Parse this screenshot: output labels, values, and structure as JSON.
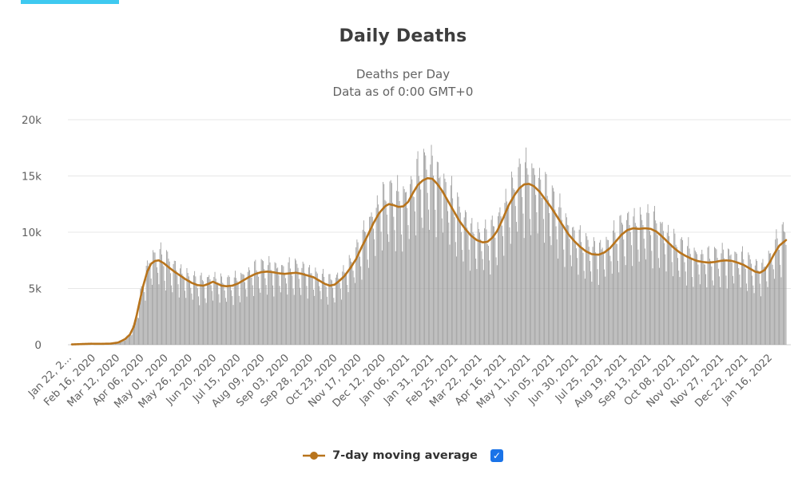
{
  "page": {
    "tab_indicator_color": "#3ec9f0"
  },
  "chart": {
    "title": "Daily Deaths",
    "subtitle1": "Deaths per Day",
    "subtitle2": "Data as of 0:00 GMT+0",
    "legend": {
      "label": "7-day moving average",
      "checked": true,
      "checkbox_color": "#1a73e8"
    }
  },
  "icons": {
    "check": "✓",
    "legend_marker": "line-with-dot"
  },
  "chart_data": {
    "type": "bar",
    "title": "Daily Deaths",
    "subtitle": [
      "Deaths per Day",
      "Data as of 0:00 GMT+0"
    ],
    "xlabel": "",
    "ylabel": "",
    "ylim": [
      0,
      20000
    ],
    "ytick_values": [
      0,
      5000,
      10000,
      15000,
      20000
    ],
    "ytick_labels": [
      "0",
      "5k",
      "10k",
      "15k",
      "20k"
    ],
    "grid": "horizontal",
    "legend_position": "bottom",
    "start_date": "2020-01-22",
    "total_days": 739,
    "xtick_interval_days": 25,
    "xtick_labels": [
      "Jan 22, 2...",
      "Feb 16, 2020",
      "Mar 12, 2020",
      "Apr 06, 2020",
      "May 01, 2020",
      "May 26, 2020",
      "Jun 20, 2020",
      "Jul 15, 2020",
      "Aug 09, 2020",
      "Sep 03, 2020",
      "Sep 28, 2020",
      "Oct 23, 2020",
      "Nov 17, 2020",
      "Dec 12, 2020",
      "Jan 06, 2021",
      "Jan 31, 2021",
      "Feb 25, 2021",
      "Mar 22, 2021",
      "Apr 16, 2021",
      "May 11, 2021",
      "Jun 05, 2021",
      "Jun 30, 2021",
      "Jul 25, 2021",
      "Aug 19, 2021",
      "Sep 13, 2021",
      "Oct 08, 2021",
      "Nov 02, 2021",
      "Nov 27, 2021",
      "Dec 22, 2021",
      "Jan 16, 2022"
    ],
    "series": [
      {
        "name": "Daily Deaths",
        "type": "bar",
        "color": "#9c9c9c",
        "note": "daily bars oscillate weekly around the 7-day moving average; tallest bars ~17500 in late Jan 2021",
        "weekly_pattern": [
          1.14,
          1.17,
          1.1,
          1.03,
          0.96,
          0.82,
          0.7
        ],
        "peak_value_approx": 17500
      },
      {
        "name": "7-day moving average",
        "type": "line",
        "color": "#b8741c",
        "points_day_value": [
          [
            0,
            30
          ],
          [
            10,
            60
          ],
          [
            20,
            90
          ],
          [
            30,
            80
          ],
          [
            40,
            100
          ],
          [
            48,
            200
          ],
          [
            55,
            500
          ],
          [
            60,
            900
          ],
          [
            64,
            1600
          ],
          [
            67,
            2600
          ],
          [
            70,
            3800
          ],
          [
            74,
            5300
          ],
          [
            78,
            6500
          ],
          [
            82,
            7200
          ],
          [
            86,
            7450
          ],
          [
            90,
            7500
          ],
          [
            95,
            7250
          ],
          [
            100,
            6900
          ],
          [
            106,
            6500
          ],
          [
            112,
            6150
          ],
          [
            118,
            5800
          ],
          [
            124,
            5500
          ],
          [
            130,
            5300
          ],
          [
            136,
            5250
          ],
          [
            141,
            5400
          ],
          [
            146,
            5600
          ],
          [
            150,
            5450
          ],
          [
            155,
            5250
          ],
          [
            160,
            5200
          ],
          [
            166,
            5250
          ],
          [
            172,
            5450
          ],
          [
            178,
            5750
          ],
          [
            184,
            6050
          ],
          [
            190,
            6300
          ],
          [
            196,
            6450
          ],
          [
            202,
            6500
          ],
          [
            208,
            6450
          ],
          [
            214,
            6350
          ],
          [
            220,
            6300
          ],
          [
            226,
            6350
          ],
          [
            232,
            6400
          ],
          [
            238,
            6300
          ],
          [
            244,
            6150
          ],
          [
            250,
            6000
          ],
          [
            256,
            5700
          ],
          [
            262,
            5400
          ],
          [
            267,
            5250
          ],
          [
            272,
            5350
          ],
          [
            277,
            5700
          ],
          [
            282,
            6100
          ],
          [
            288,
            6800
          ],
          [
            294,
            7600
          ],
          [
            300,
            8700
          ],
          [
            306,
            9700
          ],
          [
            312,
            10800
          ],
          [
            318,
            11700
          ],
          [
            324,
            12300
          ],
          [
            328,
            12500
          ],
          [
            333,
            12400
          ],
          [
            338,
            12250
          ],
          [
            343,
            12300
          ],
          [
            348,
            12700
          ],
          [
            353,
            13500
          ],
          [
            358,
            14200
          ],
          [
            363,
            14600
          ],
          [
            368,
            14800
          ],
          [
            373,
            14750
          ],
          [
            378,
            14300
          ],
          [
            383,
            13700
          ],
          [
            389,
            12800
          ],
          [
            395,
            11900
          ],
          [
            401,
            11000
          ],
          [
            407,
            10300
          ],
          [
            413,
            9700
          ],
          [
            419,
            9300
          ],
          [
            425,
            9100
          ],
          [
            430,
            9150
          ],
          [
            435,
            9500
          ],
          [
            440,
            10100
          ],
          [
            446,
            11200
          ],
          [
            452,
            12400
          ],
          [
            458,
            13300
          ],
          [
            463,
            13900
          ],
          [
            468,
            14250
          ],
          [
            473,
            14300
          ],
          [
            478,
            14100
          ],
          [
            484,
            13600
          ],
          [
            490,
            12900
          ],
          [
            496,
            12200
          ],
          [
            502,
            11400
          ],
          [
            508,
            10600
          ],
          [
            514,
            9800
          ],
          [
            520,
            9200
          ],
          [
            526,
            8700
          ],
          [
            532,
            8300
          ],
          [
            538,
            8050
          ],
          [
            545,
            8000
          ],
          [
            551,
            8200
          ],
          [
            557,
            8600
          ],
          [
            563,
            9200
          ],
          [
            569,
            9800
          ],
          [
            575,
            10200
          ],
          [
            581,
            10350
          ],
          [
            587,
            10300
          ],
          [
            593,
            10350
          ],
          [
            599,
            10300
          ],
          [
            605,
            10050
          ],
          [
            611,
            9600
          ],
          [
            617,
            9100
          ],
          [
            623,
            8600
          ],
          [
            629,
            8200
          ],
          [
            635,
            7900
          ],
          [
            641,
            7650
          ],
          [
            647,
            7450
          ],
          [
            653,
            7350
          ],
          [
            659,
            7300
          ],
          [
            665,
            7350
          ],
          [
            671,
            7450
          ],
          [
            677,
            7500
          ],
          [
            683,
            7450
          ],
          [
            689,
            7300
          ],
          [
            695,
            7100
          ],
          [
            701,
            6800
          ],
          [
            707,
            6500
          ],
          [
            712,
            6400
          ],
          [
            717,
            6650
          ],
          [
            722,
            7300
          ],
          [
            727,
            8100
          ],
          [
            732,
            8800
          ],
          [
            739,
            9300
          ]
        ]
      }
    ]
  }
}
